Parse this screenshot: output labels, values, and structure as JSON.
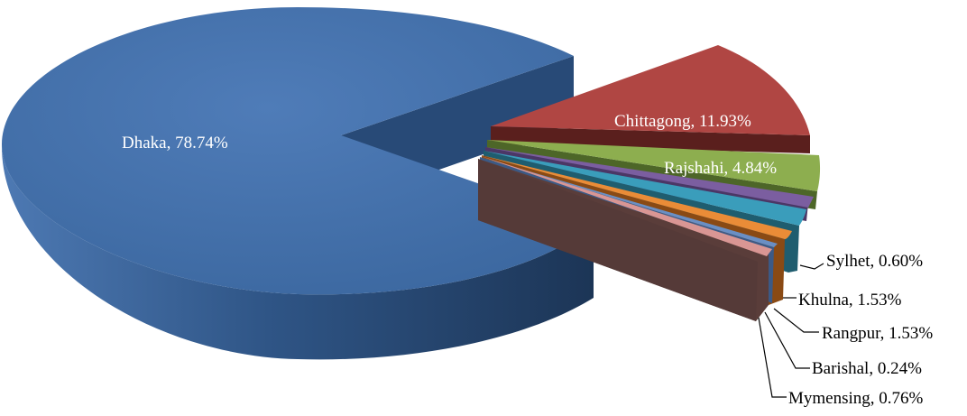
{
  "chart_data": {
    "type": "pie",
    "style": "3d-exploded",
    "title": "",
    "slices": [
      {
        "name": "Dhaka",
        "value": 78.74,
        "label": "Dhaka, 78.74%",
        "color": "#4a74ae"
      },
      {
        "name": "Chittagong",
        "value": 11.93,
        "label": "Chittagong, 11.93%",
        "color": "#b04643"
      },
      {
        "name": "Rajshahi",
        "value": 4.84,
        "label": "Rajshahi, 4.84%",
        "color": "#8dae4f"
      },
      {
        "name": "Sylhet",
        "value": 0.6,
        "label": "Sylhet, 0.60%",
        "color": "#7b5ea0"
      },
      {
        "name": "Khulna",
        "value": 1.53,
        "label": "Khulna, 1.53%",
        "color": "#3a9dbb"
      },
      {
        "name": "Rangpur",
        "value": 1.53,
        "label": "Rangpur, 1.53%",
        "color": "#ea8c37"
      },
      {
        "name": "Barishal",
        "value": 0.24,
        "label": "Barishal, 0.24%",
        "color": "#6a8fc4"
      },
      {
        "name": "Mymensing",
        "value": 0.76,
        "label": "Mymensing, 0.76%",
        "color": "#d99694"
      }
    ]
  }
}
